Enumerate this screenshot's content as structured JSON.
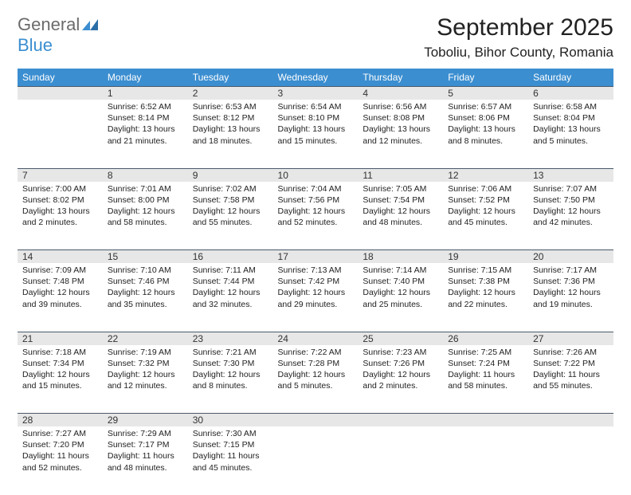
{
  "logo": {
    "text1": "General",
    "text2": "Blue"
  },
  "title": "September 2025",
  "location": "Toboliu, Bihor County, Romania",
  "colors": {
    "header_bg": "#3b8ed0",
    "header_text": "#ffffff",
    "daynum_bg": "#e7e7e7",
    "border": "#4a5a6a",
    "body_text": "#222222",
    "logo_gray": "#6b6b6b",
    "logo_blue": "#3b8ed0"
  },
  "weekdays": [
    "Sunday",
    "Monday",
    "Tuesday",
    "Wednesday",
    "Thursday",
    "Friday",
    "Saturday"
  ],
  "weeks": [
    {
      "nums": [
        "",
        "1",
        "2",
        "3",
        "4",
        "5",
        "6"
      ],
      "cells": [
        null,
        {
          "sunrise": "Sunrise: 6:52 AM",
          "sunset": "Sunset: 8:14 PM",
          "day1": "Daylight: 13 hours",
          "day2": "and 21 minutes."
        },
        {
          "sunrise": "Sunrise: 6:53 AM",
          "sunset": "Sunset: 8:12 PM",
          "day1": "Daylight: 13 hours",
          "day2": "and 18 minutes."
        },
        {
          "sunrise": "Sunrise: 6:54 AM",
          "sunset": "Sunset: 8:10 PM",
          "day1": "Daylight: 13 hours",
          "day2": "and 15 minutes."
        },
        {
          "sunrise": "Sunrise: 6:56 AM",
          "sunset": "Sunset: 8:08 PM",
          "day1": "Daylight: 13 hours",
          "day2": "and 12 minutes."
        },
        {
          "sunrise": "Sunrise: 6:57 AM",
          "sunset": "Sunset: 8:06 PM",
          "day1": "Daylight: 13 hours",
          "day2": "and 8 minutes."
        },
        {
          "sunrise": "Sunrise: 6:58 AM",
          "sunset": "Sunset: 8:04 PM",
          "day1": "Daylight: 13 hours",
          "day2": "and 5 minutes."
        }
      ]
    },
    {
      "nums": [
        "7",
        "8",
        "9",
        "10",
        "11",
        "12",
        "13"
      ],
      "cells": [
        {
          "sunrise": "Sunrise: 7:00 AM",
          "sunset": "Sunset: 8:02 PM",
          "day1": "Daylight: 13 hours",
          "day2": "and 2 minutes."
        },
        {
          "sunrise": "Sunrise: 7:01 AM",
          "sunset": "Sunset: 8:00 PM",
          "day1": "Daylight: 12 hours",
          "day2": "and 58 minutes."
        },
        {
          "sunrise": "Sunrise: 7:02 AM",
          "sunset": "Sunset: 7:58 PM",
          "day1": "Daylight: 12 hours",
          "day2": "and 55 minutes."
        },
        {
          "sunrise": "Sunrise: 7:04 AM",
          "sunset": "Sunset: 7:56 PM",
          "day1": "Daylight: 12 hours",
          "day2": "and 52 minutes."
        },
        {
          "sunrise": "Sunrise: 7:05 AM",
          "sunset": "Sunset: 7:54 PM",
          "day1": "Daylight: 12 hours",
          "day2": "and 48 minutes."
        },
        {
          "sunrise": "Sunrise: 7:06 AM",
          "sunset": "Sunset: 7:52 PM",
          "day1": "Daylight: 12 hours",
          "day2": "and 45 minutes."
        },
        {
          "sunrise": "Sunrise: 7:07 AM",
          "sunset": "Sunset: 7:50 PM",
          "day1": "Daylight: 12 hours",
          "day2": "and 42 minutes."
        }
      ]
    },
    {
      "nums": [
        "14",
        "15",
        "16",
        "17",
        "18",
        "19",
        "20"
      ],
      "cells": [
        {
          "sunrise": "Sunrise: 7:09 AM",
          "sunset": "Sunset: 7:48 PM",
          "day1": "Daylight: 12 hours",
          "day2": "and 39 minutes."
        },
        {
          "sunrise": "Sunrise: 7:10 AM",
          "sunset": "Sunset: 7:46 PM",
          "day1": "Daylight: 12 hours",
          "day2": "and 35 minutes."
        },
        {
          "sunrise": "Sunrise: 7:11 AM",
          "sunset": "Sunset: 7:44 PM",
          "day1": "Daylight: 12 hours",
          "day2": "and 32 minutes."
        },
        {
          "sunrise": "Sunrise: 7:13 AM",
          "sunset": "Sunset: 7:42 PM",
          "day1": "Daylight: 12 hours",
          "day2": "and 29 minutes."
        },
        {
          "sunrise": "Sunrise: 7:14 AM",
          "sunset": "Sunset: 7:40 PM",
          "day1": "Daylight: 12 hours",
          "day2": "and 25 minutes."
        },
        {
          "sunrise": "Sunrise: 7:15 AM",
          "sunset": "Sunset: 7:38 PM",
          "day1": "Daylight: 12 hours",
          "day2": "and 22 minutes."
        },
        {
          "sunrise": "Sunrise: 7:17 AM",
          "sunset": "Sunset: 7:36 PM",
          "day1": "Daylight: 12 hours",
          "day2": "and 19 minutes."
        }
      ]
    },
    {
      "nums": [
        "21",
        "22",
        "23",
        "24",
        "25",
        "26",
        "27"
      ],
      "cells": [
        {
          "sunrise": "Sunrise: 7:18 AM",
          "sunset": "Sunset: 7:34 PM",
          "day1": "Daylight: 12 hours",
          "day2": "and 15 minutes."
        },
        {
          "sunrise": "Sunrise: 7:19 AM",
          "sunset": "Sunset: 7:32 PM",
          "day1": "Daylight: 12 hours",
          "day2": "and 12 minutes."
        },
        {
          "sunrise": "Sunrise: 7:21 AM",
          "sunset": "Sunset: 7:30 PM",
          "day1": "Daylight: 12 hours",
          "day2": "and 8 minutes."
        },
        {
          "sunrise": "Sunrise: 7:22 AM",
          "sunset": "Sunset: 7:28 PM",
          "day1": "Daylight: 12 hours",
          "day2": "and 5 minutes."
        },
        {
          "sunrise": "Sunrise: 7:23 AM",
          "sunset": "Sunset: 7:26 PM",
          "day1": "Daylight: 12 hours",
          "day2": "and 2 minutes."
        },
        {
          "sunrise": "Sunrise: 7:25 AM",
          "sunset": "Sunset: 7:24 PM",
          "day1": "Daylight: 11 hours",
          "day2": "and 58 minutes."
        },
        {
          "sunrise": "Sunrise: 7:26 AM",
          "sunset": "Sunset: 7:22 PM",
          "day1": "Daylight: 11 hours",
          "day2": "and 55 minutes."
        }
      ]
    },
    {
      "nums": [
        "28",
        "29",
        "30",
        "",
        "",
        "",
        ""
      ],
      "cells": [
        {
          "sunrise": "Sunrise: 7:27 AM",
          "sunset": "Sunset: 7:20 PM",
          "day1": "Daylight: 11 hours",
          "day2": "and 52 minutes."
        },
        {
          "sunrise": "Sunrise: 7:29 AM",
          "sunset": "Sunset: 7:17 PM",
          "day1": "Daylight: 11 hours",
          "day2": "and 48 minutes."
        },
        {
          "sunrise": "Sunrise: 7:30 AM",
          "sunset": "Sunset: 7:15 PM",
          "day1": "Daylight: 11 hours",
          "day2": "and 45 minutes."
        },
        null,
        null,
        null,
        null
      ]
    }
  ]
}
